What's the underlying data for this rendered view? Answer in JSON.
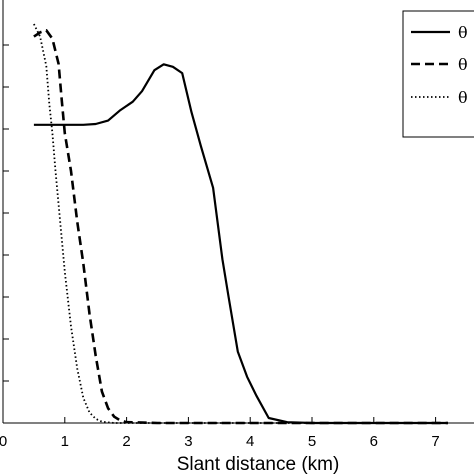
{
  "chart_data": {
    "type": "line",
    "xlabel": "Slant distance (km)",
    "ylabel": "",
    "xlim": [
      0,
      7.2
    ],
    "ylim": [
      0,
      1.0
    ],
    "x_ticks": [
      0,
      1,
      2,
      3,
      4,
      5,
      6,
      7
    ],
    "x_tick_labels": [
      "0",
      "1",
      "2",
      "3",
      "4",
      "5",
      "6",
      "7"
    ],
    "y_ticks": [
      0.1,
      0.2,
      0.3,
      0.4,
      0.5,
      0.6,
      0.7,
      0.8,
      0.9
    ],
    "grid": false,
    "legend_position": "top-right",
    "series": [
      {
        "name": "θ",
        "style": "solid",
        "x": [
          0.5,
          0.8,
          1.0,
          1.3,
          1.5,
          1.7,
          1.9,
          2.1,
          2.25,
          2.45,
          2.6,
          2.75,
          2.9,
          3.05,
          3.2,
          3.4,
          3.55,
          3.65,
          3.8,
          3.95,
          4.1,
          4.3,
          4.6,
          5.0,
          6.0,
          7.2
        ],
        "y": [
          0.71,
          0.71,
          0.71,
          0.71,
          0.712,
          0.72,
          0.745,
          0.765,
          0.79,
          0.84,
          0.854,
          0.848,
          0.833,
          0.74,
          0.66,
          0.56,
          0.39,
          0.3,
          0.17,
          0.11,
          0.065,
          0.012,
          0.002,
          0.0,
          0.0,
          0.0
        ]
      },
      {
        "name": "θ",
        "style": "dashed",
        "x": [
          0.5,
          0.6,
          0.7,
          0.8,
          0.9,
          0.95,
          1.0,
          1.1,
          1.2,
          1.3,
          1.4,
          1.5,
          1.6,
          1.7,
          1.8,
          1.9,
          2.0,
          2.5,
          3.0,
          4.0,
          5.0,
          6.0,
          7.2
        ],
        "y": [
          0.92,
          0.93,
          0.935,
          0.915,
          0.855,
          0.77,
          0.69,
          0.6,
          0.48,
          0.38,
          0.26,
          0.16,
          0.075,
          0.035,
          0.015,
          0.006,
          0.002,
          0.0,
          0.0,
          0.0,
          0.0,
          0.0,
          0.0
        ]
      },
      {
        "name": "θ",
        "style": "dotted",
        "x": [
          0.5,
          0.6,
          0.7,
          0.75,
          0.8,
          0.85,
          0.9,
          1.0,
          1.1,
          1.2,
          1.3,
          1.4,
          1.5,
          1.6,
          1.8,
          2.0,
          3.0,
          4.0,
          5.0,
          6.0,
          7.2
        ],
        "y": [
          0.95,
          0.92,
          0.85,
          0.76,
          0.69,
          0.6,
          0.52,
          0.36,
          0.23,
          0.13,
          0.06,
          0.025,
          0.01,
          0.003,
          0.0,
          0.0,
          0.0,
          0.0,
          0.0,
          0.0,
          0.0
        ]
      }
    ]
  }
}
